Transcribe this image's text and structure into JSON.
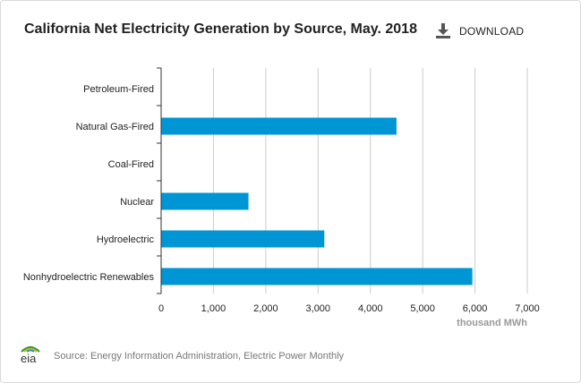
{
  "header": {
    "title": "California Net Electricity Generation by Source, May. 2018",
    "download_label": "DOWNLOAD"
  },
  "footer": {
    "logo_text": "eia",
    "source": "Source: Energy Information Administration, Electric Power Monthly"
  },
  "colors": {
    "bar": "#0096d6",
    "grid": "#cccccc",
    "axis": "#333333",
    "unit_label": "#999999"
  },
  "chart_data": {
    "type": "bar",
    "orientation": "horizontal",
    "title": "California Net Electricity Generation by Source, May. 2018",
    "categories": [
      "Petroleum-Fired",
      "Natural Gas-Fired",
      "Coal-Fired",
      "Nuclear",
      "Hydroelectric",
      "Nonhydroelectric Renewables"
    ],
    "values": [
      5,
      4500,
      5,
      1670,
      3120,
      5950
    ],
    "xlabel": "thousand MWh",
    "ylabel": "",
    "xlim": [
      0,
      7000
    ],
    "xticks": [
      0,
      1000,
      2000,
      3000,
      4000,
      5000,
      6000,
      7000
    ],
    "xtick_labels": [
      "0",
      "1,000",
      "2,000",
      "3,000",
      "4,000",
      "5,000",
      "6,000",
      "7,000"
    ],
    "grid": true,
    "legend": "none"
  }
}
